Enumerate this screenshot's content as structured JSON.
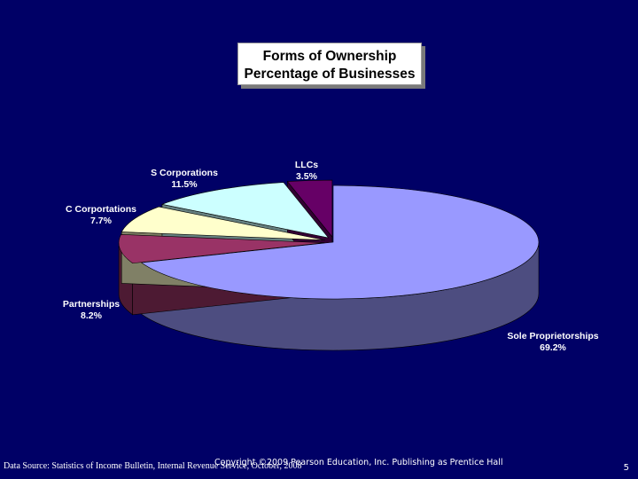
{
  "title": {
    "line1": "Forms of Ownership",
    "line2": "Percentage of Businesses"
  },
  "chart_data": {
    "type": "pie",
    "title": "Forms of Ownership Percentage of Businesses",
    "slices": [
      {
        "label": "Sole Proprietorships",
        "value_label": "69.2%",
        "value": 69.2,
        "color": "#9999ff",
        "side_color": "#4d4d80"
      },
      {
        "label": "Partnerships",
        "value_label": "8.2%",
        "value": 8.2,
        "color": "#993366",
        "side_color": "#4d1a33"
      },
      {
        "label": "C Corportations",
        "value_label": "7.7%",
        "value": 7.7,
        "color": "#ffffcc",
        "side_color": "#808066"
      },
      {
        "label": "S Corporations",
        "value_label": "11.5%",
        "value": 11.5,
        "color": "#ccffff",
        "side_color": "#668080"
      },
      {
        "label": "LLCs",
        "value_label": "3.5%",
        "value": 3.5,
        "color": "#660066",
        "side_color": "#330033"
      }
    ],
    "style": "3d-exploded"
  },
  "footer": {
    "source": "Data Source: Statistics of Income Bulletin, Internal Revenue Service, October, 2008",
    "copyright": "Copyright ©2009 Pearson Education, Inc. Publishing as Prentice Hall",
    "page_number": "5"
  }
}
